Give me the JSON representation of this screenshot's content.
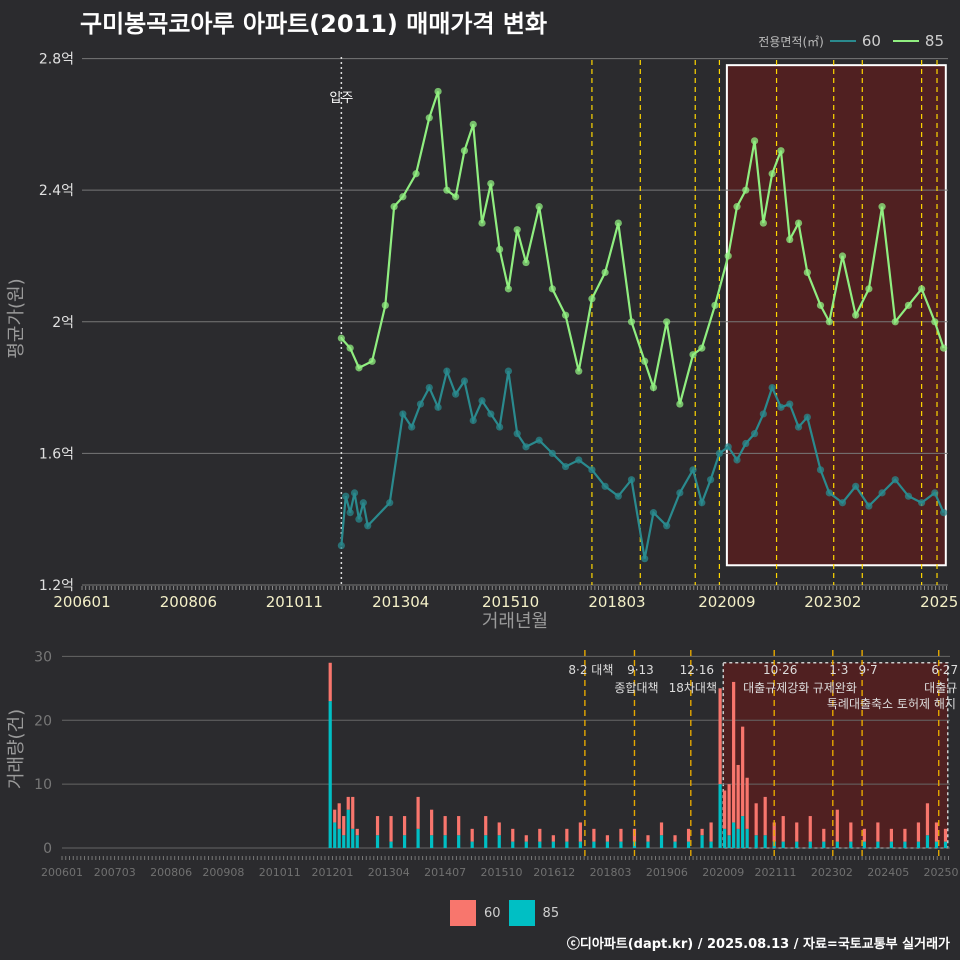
{
  "title": "구미봉곡코아루 아파트(2011) 매매가격 변화",
  "footer": "ⓒ디아파트(dapt.kr) / 2025.08.13 / 자료=국토교통부 실거래가",
  "legend": {
    "title": "전용면적(㎡)",
    "items": [
      {
        "label": "60",
        "line_color": "#2a8a8e",
        "bar_color": "#f8766d"
      },
      {
        "label": "85",
        "line_color": "#90ee80",
        "bar_color": "#00bfc4"
      }
    ]
  },
  "colors": {
    "bg": "#2b2b2e",
    "line60": "#2a8a8e",
    "line85": "#90ee80",
    "bar60": "#f8766d",
    "bar85": "#00bfc4",
    "event": "#ffd700",
    "highlight": "#5a1e1e"
  },
  "chart_data": [
    {
      "type": "line",
      "ylabel": "평균가(원)",
      "xlabel": "거래년월",
      "x_ticks": [
        "200601",
        "200806",
        "201011",
        "201304",
        "201510",
        "201803",
        "202009",
        "202302",
        "2025"
      ],
      "y_ticks": [
        "1.2억",
        "1.6억",
        "2억",
        "2.4억",
        "2.8억"
      ],
      "y_tick_values": [
        1.2,
        1.6,
        2.0,
        2.4,
        2.8
      ],
      "ylim": [
        1.2,
        2.82
      ],
      "xlim": [
        2006.0,
        2025.7
      ],
      "x_tick_values": [
        2006.0,
        2008.42,
        2010.83,
        2013.25,
        2015.75,
        2018.17,
        2020.67,
        2023.08,
        2025.5
      ],
      "annotation": {
        "label": "입주",
        "x": 2011.9
      },
      "event_lines": [
        2017.6,
        2018.7,
        2019.95,
        2020.5,
        2021.8,
        2023.1,
        2023.75,
        2025.1,
        2025.45
      ],
      "highlight_range": [
        2020.67,
        2025.65
      ],
      "series": [
        {
          "name": "60",
          "x": [
            2011.9,
            2012.0,
            2012.1,
            2012.2,
            2012.3,
            2012.4,
            2012.5,
            2013.0,
            2013.3,
            2013.5,
            2013.7,
            2013.9,
            2014.1,
            2014.3,
            2014.5,
            2014.7,
            2014.9,
            2015.1,
            2015.3,
            2015.5,
            2015.7,
            2015.9,
            2016.1,
            2016.4,
            2016.7,
            2017.0,
            2017.3,
            2017.6,
            2017.9,
            2018.2,
            2018.5,
            2018.8,
            2019.0,
            2019.3,
            2019.6,
            2019.9,
            2020.1,
            2020.3,
            2020.5,
            2020.7,
            2020.9,
            2021.1,
            2021.3,
            2021.5,
            2021.7,
            2021.9,
            2022.1,
            2022.3,
            2022.5,
            2022.8,
            2023.0,
            2023.3,
            2023.6,
            2023.9,
            2024.2,
            2024.5,
            2024.8,
            2025.1,
            2025.4,
            2025.6
          ],
          "y": [
            1.32,
            1.47,
            1.42,
            1.48,
            1.4,
            1.45,
            1.38,
            1.45,
            1.72,
            1.68,
            1.75,
            1.8,
            1.74,
            1.85,
            1.78,
            1.82,
            1.7,
            1.76,
            1.72,
            1.68,
            1.85,
            1.66,
            1.62,
            1.64,
            1.6,
            1.56,
            1.58,
            1.55,
            1.5,
            1.47,
            1.52,
            1.28,
            1.42,
            1.38,
            1.48,
            1.55,
            1.45,
            1.52,
            1.6,
            1.62,
            1.58,
            1.63,
            1.66,
            1.72,
            1.8,
            1.74,
            1.75,
            1.68,
            1.71,
            1.55,
            1.48,
            1.45,
            1.5,
            1.44,
            1.48,
            1.52,
            1.47,
            1.45,
            1.48,
            1.42
          ]
        },
        {
          "name": "85",
          "x": [
            2011.9,
            2012.1,
            2012.3,
            2012.6,
            2012.9,
            2013.1,
            2013.3,
            2013.6,
            2013.9,
            2014.1,
            2014.3,
            2014.5,
            2014.7,
            2014.9,
            2015.1,
            2015.3,
            2015.5,
            2015.7,
            2015.9,
            2016.1,
            2016.4,
            2016.7,
            2017.0,
            2017.3,
            2017.6,
            2017.9,
            2018.2,
            2018.5,
            2018.8,
            2019.0,
            2019.3,
            2019.6,
            2019.9,
            2020.1,
            2020.4,
            2020.7,
            2020.9,
            2021.1,
            2021.3,
            2021.5,
            2021.7,
            2021.9,
            2022.1,
            2022.3,
            2022.5,
            2022.8,
            2023.0,
            2023.3,
            2023.6,
            2023.9,
            2024.2,
            2024.5,
            2024.8,
            2025.1,
            2025.4,
            2025.6
          ],
          "y": [
            1.95,
            1.92,
            1.86,
            1.88,
            2.05,
            2.35,
            2.38,
            2.45,
            2.62,
            2.7,
            2.4,
            2.38,
            2.52,
            2.6,
            2.3,
            2.42,
            2.22,
            2.1,
            2.28,
            2.18,
            2.35,
            2.1,
            2.02,
            1.85,
            2.07,
            2.15,
            2.3,
            2.0,
            1.88,
            1.8,
            2.0,
            1.75,
            1.9,
            1.92,
            2.05,
            2.2,
            2.35,
            2.4,
            2.55,
            2.3,
            2.45,
            2.52,
            2.25,
            2.3,
            2.15,
            2.05,
            2.0,
            2.2,
            2.02,
            2.1,
            2.35,
            2.0,
            2.05,
            2.1,
            2.0,
            1.92
          ]
        }
      ]
    },
    {
      "type": "bar",
      "ylabel": "거래량(건)",
      "y_ticks": [
        "0",
        "10",
        "20",
        "30"
      ],
      "y_tick_values": [
        0,
        10,
        20,
        30
      ],
      "ylim": [
        0,
        31
      ],
      "x_ticks": [
        "200601",
        "200703",
        "200806",
        "200908",
        "201011",
        "201201",
        "201304",
        "201407",
        "201510",
        "201612",
        "201803",
        "201906",
        "202009",
        "202111",
        "202302",
        "202405",
        "20250"
      ],
      "x_tick_values": [
        2006.0,
        2007.17,
        2008.42,
        2009.58,
        2010.83,
        2012.0,
        2013.25,
        2014.5,
        2015.75,
        2016.92,
        2018.17,
        2019.42,
        2020.67,
        2021.83,
        2023.08,
        2024.33,
        2025.5
      ],
      "events": [
        {
          "date": "8·2 대책",
          "label": "",
          "x": 2017.6
        },
        {
          "date": "9·13",
          "label": "종합대책",
          "x": 2018.7
        },
        {
          "date": "12·16",
          "label": "18차대책",
          "x": 2019.95
        },
        {
          "date": "10·26",
          "label": "대출규제강화",
          "x": 2021.8
        },
        {
          "date": "1·3",
          "label": "규제완화",
          "x": 2023.1
        },
        {
          "date": "9·7",
          "label": "",
          "x": 2023.75
        },
        {
          "date": "6·27",
          "label": "대출규",
          "x": 2025.45
        }
      ],
      "event_note": "특례대출축소 토허제 해지",
      "highlight_range": [
        2020.67,
        2025.65
      ],
      "series": [
        {
          "name": "60",
          "x": [
            2011.95,
            2012.05,
            2012.15,
            2012.25,
            2012.35,
            2012.45,
            2012.55,
            2013.0,
            2013.3,
            2013.6,
            2013.9,
            2014.2,
            2014.5,
            2014.8,
            2015.1,
            2015.4,
            2015.7,
            2016.0,
            2016.3,
            2016.6,
            2016.9,
            2017.2,
            2017.5,
            2017.8,
            2018.1,
            2018.4,
            2018.7,
            2019.0,
            2019.3,
            2019.6,
            2019.9,
            2020.2,
            2020.4,
            2020.6,
            2020.7,
            2020.8,
            2020.9,
            2021.0,
            2021.1,
            2021.2,
            2021.4,
            2021.6,
            2021.8,
            2022.0,
            2022.3,
            2022.6,
            2022.9,
            2023.2,
            2023.5,
            2023.8,
            2024.1,
            2024.4,
            2024.7,
            2025.0,
            2025.2,
            2025.4,
            2025.6
          ],
          "y": [
            6,
            2,
            4,
            3,
            2,
            5,
            1,
            3,
            4,
            3,
            5,
            4,
            3,
            3,
            2,
            3,
            2,
            2,
            1,
            2,
            1,
            2,
            3,
            2,
            1,
            2,
            2,
            1,
            2,
            1,
            2,
            1,
            3,
            15,
            6,
            8,
            22,
            10,
            14,
            8,
            5,
            6,
            3,
            4,
            3,
            4,
            2,
            5,
            3,
            2,
            3,
            2,
            2,
            3,
            5,
            3,
            2
          ]
        },
        {
          "name": "85",
          "x": [
            2011.95,
            2012.05,
            2012.15,
            2012.25,
            2012.35,
            2012.45,
            2012.55,
            2013.0,
            2013.3,
            2013.6,
            2013.9,
            2014.2,
            2014.5,
            2014.8,
            2015.1,
            2015.4,
            2015.7,
            2016.0,
            2016.3,
            2016.6,
            2016.9,
            2017.2,
            2017.5,
            2017.8,
            2018.1,
            2018.4,
            2018.7,
            2019.0,
            2019.3,
            2019.6,
            2019.9,
            2020.2,
            2020.4,
            2020.6,
            2020.7,
            2020.8,
            2020.9,
            2021.0,
            2021.1,
            2021.2,
            2021.4,
            2021.6,
            2021.8,
            2022.0,
            2022.3,
            2022.6,
            2022.9,
            2023.2,
            2023.5,
            2023.8,
            2024.1,
            2024.4,
            2024.7,
            2025.0,
            2025.2,
            2025.4,
            2025.6
          ],
          "y": [
            23,
            4,
            3,
            2,
            6,
            3,
            2,
            2,
            1,
            2,
            3,
            2,
            2,
            2,
            1,
            2,
            2,
            1,
            1,
            1,
            1,
            1,
            1,
            1,
            1,
            1,
            1,
            1,
            2,
            1,
            1,
            2,
            1,
            10,
            3,
            2,
            4,
            3,
            5,
            3,
            2,
            2,
            1,
            1,
            1,
            1,
            1,
            1,
            1,
            1,
            1,
            1,
            1,
            1,
            2,
            1,
            1
          ]
        }
      ]
    }
  ]
}
